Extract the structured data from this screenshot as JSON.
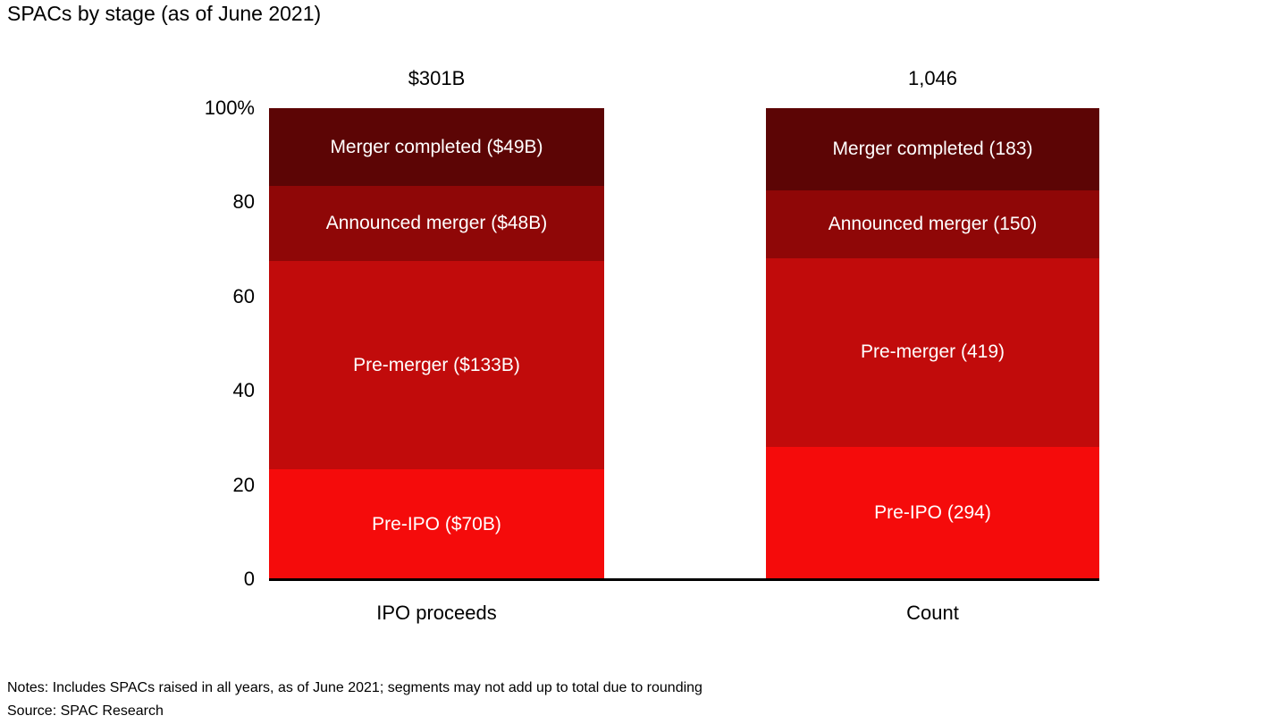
{
  "title": "SPACs by stage (as of June 2021)",
  "notes": "Notes: Includes SPACs raised in all years, as of June 2021; segments may not add up to total due to rounding",
  "source": "Source: SPAC Research",
  "chart_data": {
    "type": "bar",
    "subtype": "stacked-100-percent",
    "title": "SPACs by stage (as of June 2021)",
    "categories": [
      "IPO proceeds",
      "Count"
    ],
    "totals": [
      "$301B",
      "1,046"
    ],
    "xlabel": "",
    "ylabel": "",
    "ylim": [
      0,
      100
    ],
    "grid": false,
    "legend": "none (labels inside segments)",
    "yticks": [
      {
        "label": "100%",
        "value": 100
      },
      {
        "label": "80",
        "value": 80
      },
      {
        "label": "60",
        "value": 60
      },
      {
        "label": "40",
        "value": 40
      },
      {
        "label": "20",
        "value": 20
      },
      {
        "label": "0",
        "value": 0
      }
    ],
    "series": [
      {
        "name": "Merger completed",
        "color": "#5c0505",
        "labels": [
          "Merger completed ($49B)",
          "Merger completed (183)"
        ],
        "raw_values": [
          "$49B",
          "183"
        ],
        "values_pct": [
          16.6,
          17.5
        ]
      },
      {
        "name": "Announced merger",
        "color": "#8f0707",
        "labels": [
          "Announced merger ($48B)",
          "Announced merger (150)"
        ],
        "raw_values": [
          "$48B",
          "150"
        ],
        "values_pct": [
          15.9,
          14.3
        ]
      },
      {
        "name": "Pre-merger",
        "color": "#c10b0b",
        "labels": [
          "Pre-merger ($133B)",
          "Pre-merger (419)"
        ],
        "raw_values": [
          "$133B",
          "419"
        ],
        "values_pct": [
          44.2,
          40.1
        ]
      },
      {
        "name": "Pre-IPO",
        "color": "#f50b0b",
        "labels": [
          "Pre-IPO ($70B)",
          "Pre-IPO (294)"
        ],
        "raw_values": [
          "$70B",
          "294"
        ],
        "values_pct": [
          23.3,
          28.1
        ]
      }
    ]
  }
}
